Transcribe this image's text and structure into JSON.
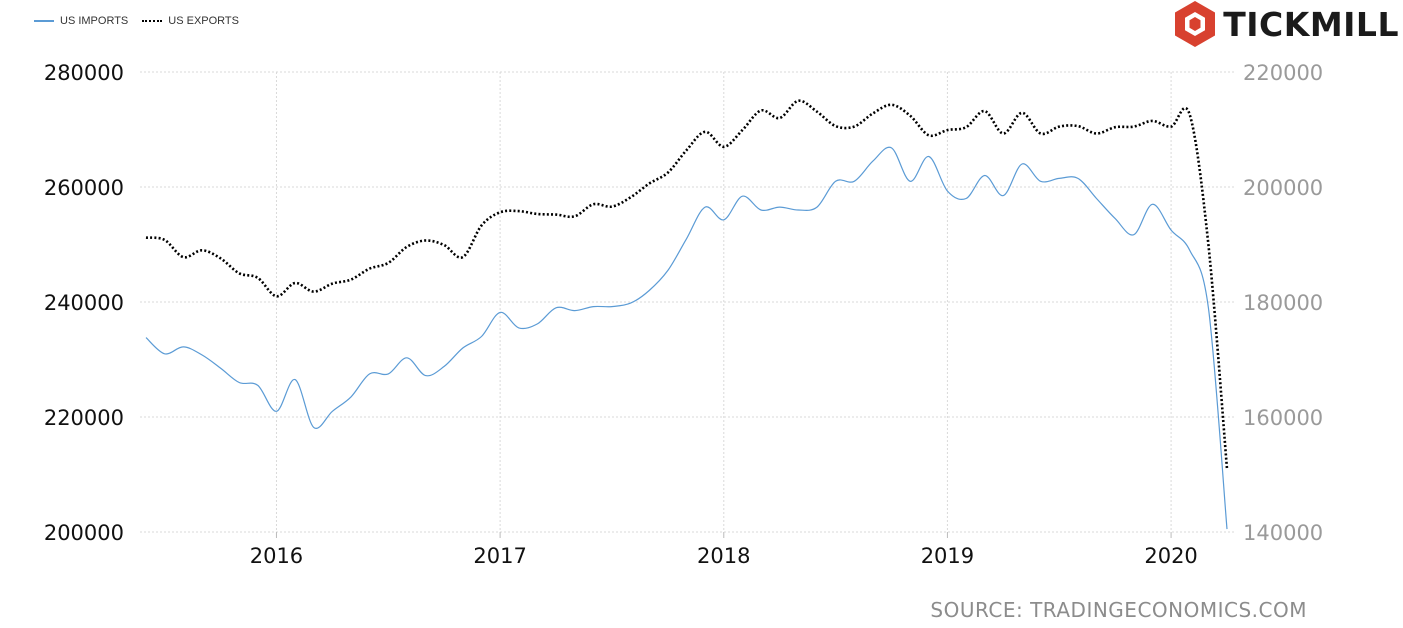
{
  "legend": {
    "imports": "US IMPORTS",
    "exports": "US EXPORTS"
  },
  "brand": {
    "name": "TICKMILL",
    "icon": "tickmill-hexagon-logo",
    "color": "#d8412f"
  },
  "source": "SOURCE: TRADINGECONOMICS.COM",
  "colors": {
    "imports": "#5b9bd5",
    "exports": "#000000",
    "grid": "#d9d9d9",
    "left_axis_text": "#111111",
    "right_axis_text": "#9a9a9a"
  },
  "chart_data": {
    "type": "line",
    "xlabel": "",
    "ylabel": "",
    "x_ticks": [
      "2016",
      "2017",
      "2018",
      "2019",
      "2020"
    ],
    "y_left": {
      "lim": [
        200000,
        280000
      ],
      "ticks": [
        "200000",
        "220000",
        "240000",
        "260000",
        "280000"
      ]
    },
    "y_right": {
      "lim": [
        140000,
        220000
      ],
      "ticks": [
        "140000",
        "160000",
        "180000",
        "200000",
        "220000"
      ]
    },
    "grid": true,
    "legend_position": "top-left",
    "series": [
      {
        "name": "US IMPORTS",
        "axis": "left",
        "style": "solid",
        "x": [
          "2015-06",
          "2015-07",
          "2015-08",
          "2015-09",
          "2015-10",
          "2015-11",
          "2015-12",
          "2016-01",
          "2016-02",
          "2016-03",
          "2016-04",
          "2016-05",
          "2016-06",
          "2016-07",
          "2016-08",
          "2016-09",
          "2016-10",
          "2016-11",
          "2016-12",
          "2017-01",
          "2017-02",
          "2017-03",
          "2017-04",
          "2017-05",
          "2017-06",
          "2017-07",
          "2017-08",
          "2017-09",
          "2017-10",
          "2017-11",
          "2017-12",
          "2018-01",
          "2018-02",
          "2018-03",
          "2018-04",
          "2018-05",
          "2018-06",
          "2018-07",
          "2018-08",
          "2018-09",
          "2018-10",
          "2018-11",
          "2018-12",
          "2019-01",
          "2019-02",
          "2019-03",
          "2019-04",
          "2019-05",
          "2019-06",
          "2019-07",
          "2019-08",
          "2019-09",
          "2019-10",
          "2019-11",
          "2019-12",
          "2020-01",
          "2020-02",
          "2020-03",
          "2020-04"
        ],
        "values": [
          233800,
          231000,
          232200,
          230800,
          228500,
          226000,
          225500,
          221000,
          226500,
          218200,
          221000,
          223500,
          227500,
          227500,
          230300,
          227200,
          228800,
          232000,
          234000,
          238200,
          235500,
          236200,
          239000,
          238500,
          239200,
          239200,
          239800,
          242000,
          245500,
          251000,
          256500,
          254300,
          258400,
          256000,
          256500,
          256000,
          256500,
          261000,
          261000,
          264500,
          266800,
          261000,
          265300,
          259300,
          258000,
          262000,
          258500,
          264000,
          261000,
          261500,
          261500,
          258000,
          254500,
          251700,
          257000,
          252500,
          249000,
          239000,
          200500
        ]
      },
      {
        "name": "US EXPORTS",
        "axis": "right",
        "style": "dotted",
        "x": [
          "2015-06",
          "2015-07",
          "2015-08",
          "2015-09",
          "2015-10",
          "2015-11",
          "2015-12",
          "2016-01",
          "2016-02",
          "2016-03",
          "2016-04",
          "2016-05",
          "2016-06",
          "2016-07",
          "2016-08",
          "2016-09",
          "2016-10",
          "2016-11",
          "2016-12",
          "2017-01",
          "2017-02",
          "2017-03",
          "2017-04",
          "2017-05",
          "2017-06",
          "2017-07",
          "2017-08",
          "2017-09",
          "2017-10",
          "2017-11",
          "2017-12",
          "2018-01",
          "2018-02",
          "2018-03",
          "2018-04",
          "2018-05",
          "2018-06",
          "2018-07",
          "2018-08",
          "2018-09",
          "2018-10",
          "2018-11",
          "2018-12",
          "2019-01",
          "2019-02",
          "2019-03",
          "2019-04",
          "2019-05",
          "2019-06",
          "2019-07",
          "2019-08",
          "2019-09",
          "2019-10",
          "2019-11",
          "2019-12",
          "2020-01",
          "2020-02",
          "2020-03",
          "2020-04"
        ],
        "values": [
          191200,
          190800,
          187800,
          189000,
          187600,
          185000,
          184200,
          181000,
          183300,
          181800,
          183200,
          183900,
          185800,
          186800,
          189600,
          190700,
          189900,
          187800,
          193300,
          195600,
          195800,
          195300,
          195200,
          194900,
          197000,
          196600,
          198200,
          200600,
          202500,
          206400,
          209600,
          207000,
          209900,
          213300,
          212000,
          215000,
          213100,
          210600,
          210500,
          212800,
          214300,
          212400,
          209000,
          209900,
          210400,
          213200,
          209300,
          212900,
          209300,
          210500,
          210600,
          209300,
          210400,
          210500,
          211500,
          210500,
          212600,
          190000,
          151000
        ]
      }
    ]
  }
}
